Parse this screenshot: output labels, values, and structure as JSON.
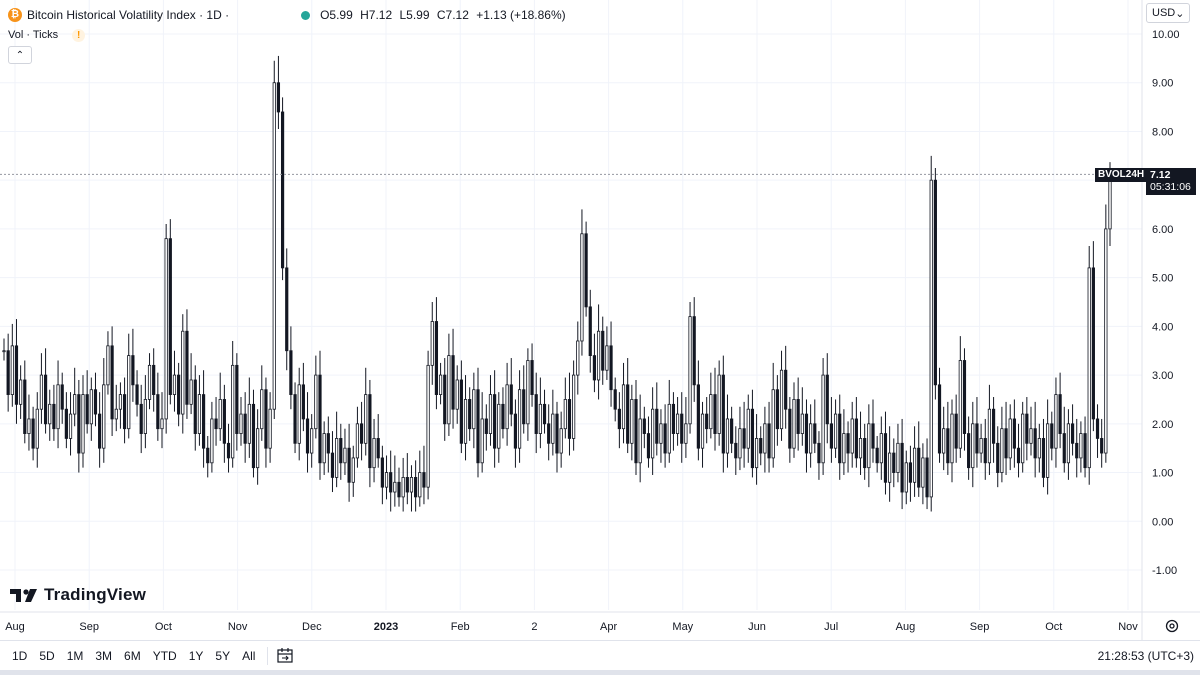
{
  "header": {
    "symbol_title": "Bitcoin Historical Volatility Index · 1D ·",
    "ohlc": [
      "O5.99",
      "H7.12",
      "L5.99",
      "C7.12",
      "+1.13 (+18.86%)"
    ],
    "coin_glyph": "₿",
    "vol_label": "Vol · Ticks",
    "warn_glyph": "!",
    "collapse_glyph": "⌃"
  },
  "currency": {
    "label": "USD",
    "arrow": "⌄"
  },
  "last_price": {
    "tag": "BVOL24H",
    "value": "7.12",
    "countdown": "05:31:06"
  },
  "logo": {
    "text": "TradingView"
  },
  "bottom_bar": {
    "ranges": [
      "1D",
      "5D",
      "1M",
      "3M",
      "6M",
      "YTD",
      "1Y",
      "5Y",
      "All"
    ],
    "clock": "21:28:53 (UTC+3)"
  },
  "colors": {
    "candle": "#131722",
    "grid": "#f0f3fa",
    "price_line": "#9598a1",
    "accent": "#2962ff"
  },
  "chart_data": {
    "type": "candlestick",
    "title": "Bitcoin Historical Volatility Index",
    "y_axis": {
      "ticks": [
        "10.00",
        "9.00",
        "8.00",
        "7.00",
        "6.00",
        "5.00",
        "4.00",
        "3.00",
        "2.00",
        "1.00",
        "0.00",
        "-1.00"
      ],
      "range": [
        -1.5,
        10.5
      ]
    },
    "x_axis": {
      "ticks": [
        "Aug",
        "Sep",
        "Oct",
        "Nov",
        "Dec",
        "2023",
        "Feb",
        "2",
        "Apr",
        "May",
        "Jun",
        "Jul",
        "Aug",
        "Sep",
        "Oct",
        "Nov"
      ]
    },
    "last_value": 7.12,
    "closes": [
      3.5,
      2.6,
      3.6,
      2.4,
      2.9,
      1.8,
      2.1,
      1.5,
      2.3,
      3.0,
      2.0,
      2.4,
      1.9,
      2.8,
      2.3,
      1.7,
      2.2,
      2.6,
      1.4,
      2.6,
      2.0,
      2.7,
      2.2,
      1.5,
      2.8,
      3.6,
      2.1,
      2.3,
      2.6,
      1.9,
      3.4,
      2.8,
      2.4,
      1.8,
      2.5,
      3.2,
      2.6,
      1.9,
      2.1,
      5.8,
      2.6,
      3.0,
      2.2,
      3.9,
      2.4,
      2.9,
      1.8,
      2.6,
      1.5,
      1.2,
      2.1,
      1.9,
      2.5,
      1.6,
      1.3,
      3.2,
      1.8,
      2.2,
      1.6,
      2.4,
      1.1,
      1.9,
      2.7,
      1.5,
      2.3,
      9.0,
      8.4,
      5.2,
      3.5,
      2.6,
      1.6,
      2.8,
      2.1,
      1.4,
      1.9,
      3.0,
      1.2,
      1.8,
      1.4,
      0.9,
      1.7,
      1.2,
      1.5,
      0.8,
      1.3,
      2.0,
      1.6,
      2.6,
      1.1,
      1.7,
      1.3,
      0.7,
      1.0,
      0.6,
      0.8,
      0.5,
      0.9,
      0.6,
      0.9,
      0.5,
      1.0,
      0.7,
      3.2,
      4.1,
      2.6,
      3.0,
      2.0,
      3.4,
      2.3,
      2.9,
      1.6,
      2.5,
      1.9,
      2.7,
      1.2,
      2.1,
      1.8,
      2.6,
      1.5,
      2.4,
      1.9,
      2.8,
      2.2,
      1.5,
      2.7,
      2.0,
      3.3,
      2.6,
      1.8,
      2.4,
      2.0,
      1.6,
      2.2,
      1.4,
      1.9,
      2.5,
      1.7,
      3.0,
      3.7,
      5.9,
      4.4,
      3.4,
      2.9,
      3.9,
      3.1,
      3.6,
      2.7,
      2.3,
      1.9,
      2.8,
      1.6,
      2.5,
      1.2,
      2.1,
      1.8,
      1.3,
      2.3,
      1.6,
      2.0,
      1.4,
      2.4,
      1.8,
      2.2,
      1.6,
      2.0,
      4.2,
      2.8,
      1.5,
      2.2,
      1.9,
      2.6,
      1.8,
      3.0,
      1.4,
      2.1,
      1.6,
      1.3,
      1.9,
      1.5,
      2.3,
      1.1,
      1.7,
      1.4,
      2.0,
      1.3,
      2.7,
      1.9,
      3.1,
      2.3,
      1.5,
      2.5,
      1.8,
      2.2,
      1.4,
      2.0,
      1.6,
      1.2,
      3.0,
      2.0,
      1.5,
      2.2,
      1.2,
      1.8,
      1.4,
      2.1,
      1.3,
      1.7,
      1.1,
      2.0,
      1.5,
      1.2,
      1.8,
      0.8,
      1.4,
      1.0,
      1.6,
      0.6,
      1.2,
      0.8,
      1.5,
      0.7,
      1.3,
      0.5,
      7.0,
      2.8,
      1.4,
      1.9,
      1.2,
      2.2,
      1.5,
      3.3,
      1.8,
      1.1,
      2.0,
      1.4,
      1.7,
      1.2,
      2.3,
      1.6,
      1.0,
      1.9,
      1.3,
      2.1,
      1.5,
      1.2,
      2.2,
      1.6,
      1.9,
      1.3,
      1.7,
      0.9,
      2.0,
      1.5,
      2.6,
      1.8,
      1.2,
      2.0,
      1.6,
      1.3,
      1.8,
      1.1,
      5.2,
      2.1,
      1.7,
      1.4,
      6.0,
      7.12
    ],
    "note_closes": "approximate daily close values (volatility %), read from chart"
  }
}
